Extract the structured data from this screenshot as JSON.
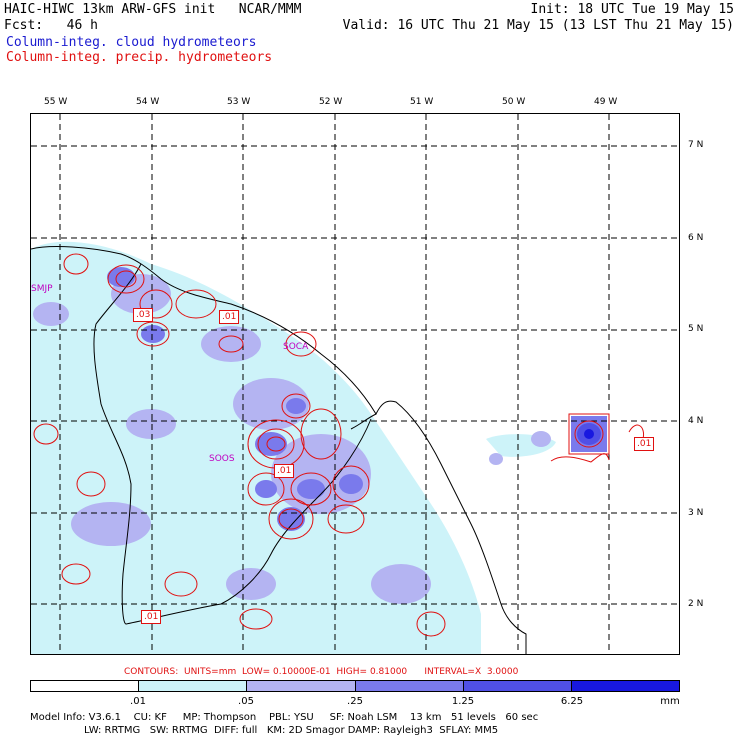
{
  "header": {
    "line1_left": "HAIC-HIWC 13km ARW-GFS init   NCAR/MMM",
    "line1_right": "Init: 18 UTC Tue 19 May 15",
    "line2_left": "Fcst:   46 h",
    "line2_right": "Valid: 16 UTC Thu 21 May 15 (13 LST Thu 21 May 15)",
    "line3": "Column-integ. cloud hydrometeors",
    "line4": "Column-integ. precip. hydrometeors"
  },
  "axes": {
    "lon_labels": [
      "55 W",
      "54 W",
      "53 W",
      "52 W",
      "51 W",
      "50 W",
      "49 W"
    ],
    "lat_labels": [
      "7 N",
      "6 N",
      "5 N",
      "4 N",
      "3 N",
      "2 N"
    ]
  },
  "stations": [
    "SMJP",
    "SOCA",
    "SOOS"
  ],
  "contour_labels": [
    ".03",
    ".01",
    ".01",
    ".01",
    ".01"
  ],
  "contour_info": {
    "text": "CONTOURS:  UNITS=mm  LOW= 0.10000E-01  HIGH= 0.81000      INTERVAL=X  3.0000"
  },
  "colorbar": {
    "labels": [
      ".01",
      ".05",
      ".25",
      "1.25",
      "6.25",
      "mm"
    ],
    "colors": [
      "#ffffff",
      "#cdf3f9",
      "#b4b4f2",
      "#7a7aec",
      "#5050e6",
      "#1818e0"
    ]
  },
  "footer": {
    "line1": "Model Info: V3.6.1    CU: KF     MP: Thompson    PBL: YSU     SF: Noah LSM    13 km   51 levels   60 sec",
    "line2": "                 LW: RRTMG   SW: RRTMG  DIFF: full   KM: 2D Smagor DAMP: Rayleigh3  SFLAY: MM5"
  }
}
